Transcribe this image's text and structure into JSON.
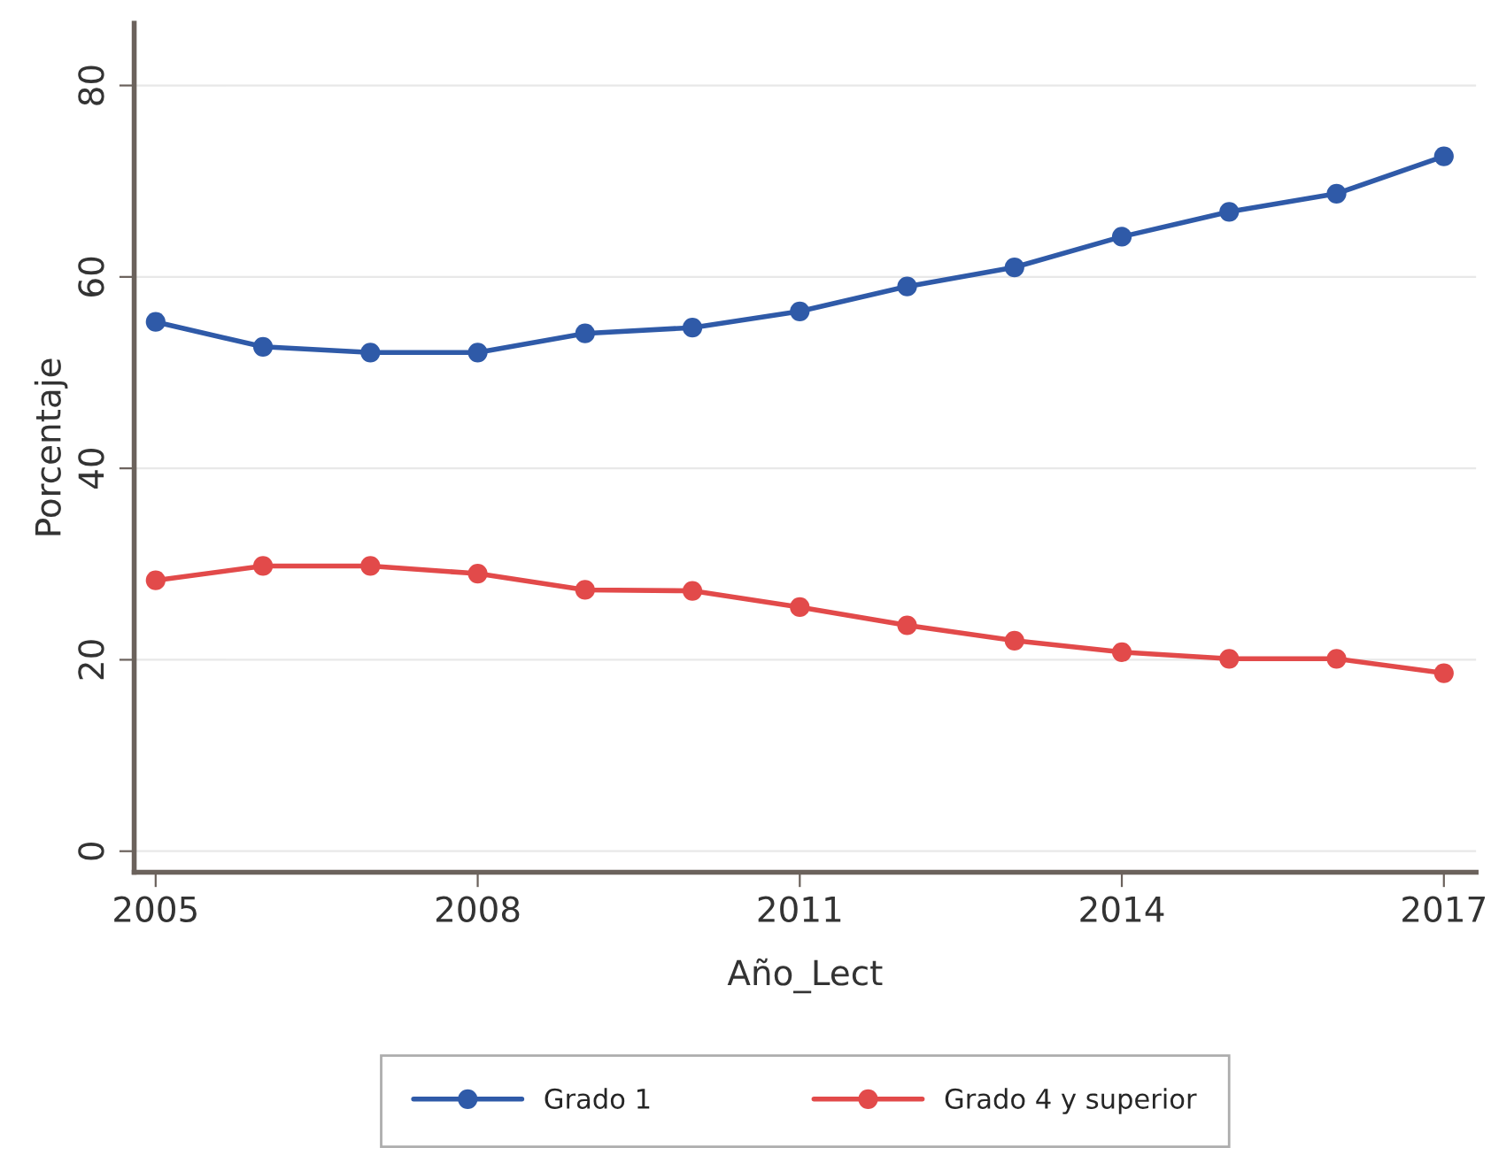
{
  "chart_data": {
    "type": "line",
    "xlabel": "Año_Lect",
    "ylabel": "Porcentaje",
    "x": [
      2005,
      2006,
      2007,
      2008,
      2009,
      2010,
      2011,
      2012,
      2013,
      2014,
      2015,
      2016,
      2017
    ],
    "series": [
      {
        "name": "Grado 1",
        "color": "#2f5aa8",
        "values": [
          55.3,
          52.7,
          52.1,
          52.1,
          54.1,
          54.7,
          56.4,
          59.0,
          61.0,
          64.2,
          66.8,
          68.7,
          72.6
        ]
      },
      {
        "name": "Grado 4 y superior",
        "color": "#e24a4a",
        "values": [
          28.3,
          29.8,
          29.8,
          29.0,
          27.3,
          27.2,
          25.5,
          23.6,
          22.0,
          20.8,
          20.1,
          20.1,
          18.6
        ]
      }
    ],
    "xlim": [
      2004.8,
      2017.3
    ],
    "xticks": [
      2005,
      2008,
      2011,
      2014,
      2017
    ],
    "ylim": [
      -2.2,
      86.5
    ],
    "yticks": [
      0,
      20,
      40,
      60,
      80
    ],
    "grid": "y",
    "legend": "bottom",
    "marker": "circle",
    "line_style": "solid"
  }
}
